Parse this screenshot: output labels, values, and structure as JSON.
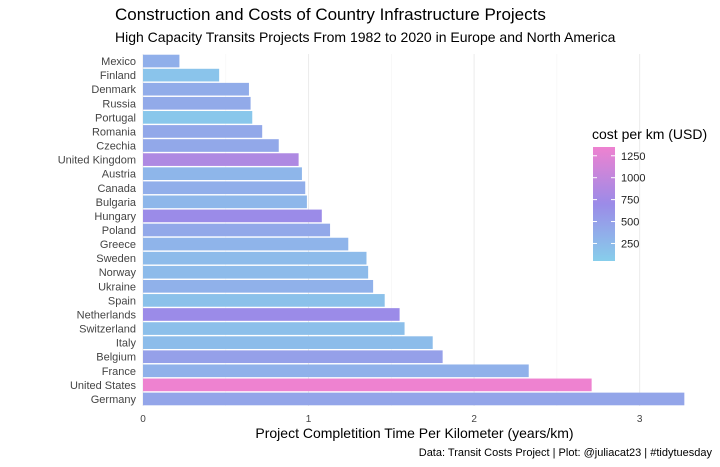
{
  "chart_data": {
    "type": "bar",
    "orientation": "horizontal",
    "title": "Construction and Costs of Country Infrastructure Projects",
    "subtitle": "High Capacity Transits Projects From 1982 to 2020 in Europe and North America",
    "xlabel": "Project Completition Time Per Kilometer (years/km)",
    "ylabel": "",
    "caption": "Data: Transit Costs Project | Plot: @juliacat23 | #tidytuesday",
    "xlim": [
      0,
      3.28
    ],
    "xticks": [
      0,
      1,
      2,
      3
    ],
    "grid": true,
    "categories": [
      "Mexico",
      "Finland",
      "Denmark",
      "Russia",
      "Portugal",
      "Romania",
      "Czechia",
      "United Kingdom",
      "Austria",
      "Canada",
      "Bulgaria",
      "Hungary",
      "Poland",
      "Greece",
      "Sweden",
      "Norway",
      "Ukraine",
      "Spain",
      "Netherlands",
      "Switzerland",
      "Italy",
      "Belgium",
      "France",
      "United States",
      "Germany"
    ],
    "values": [
      0.22,
      0.46,
      0.64,
      0.65,
      0.66,
      0.72,
      0.82,
      0.94,
      0.96,
      0.98,
      0.99,
      1.08,
      1.13,
      1.24,
      1.35,
      1.36,
      1.39,
      1.46,
      1.55,
      1.58,
      1.75,
      1.81,
      2.33,
      2.71,
      3.27
    ],
    "color_values": [
      350,
      150,
      380,
      400,
      120,
      420,
      420,
      850,
      280,
      360,
      270,
      700,
      420,
      300,
      230,
      230,
      330,
      180,
      700,
      200,
      220,
      500,
      330,
      1350,
      450
    ],
    "legend": {
      "title": "cost per km (USD)",
      "position": "right",
      "ticks": [
        250,
        500,
        750,
        1000,
        1250
      ],
      "range": [
        50,
        1350
      ],
      "colors": [
        "#87ceeb",
        "#9b8be8",
        "#ee82d0"
      ]
    }
  }
}
